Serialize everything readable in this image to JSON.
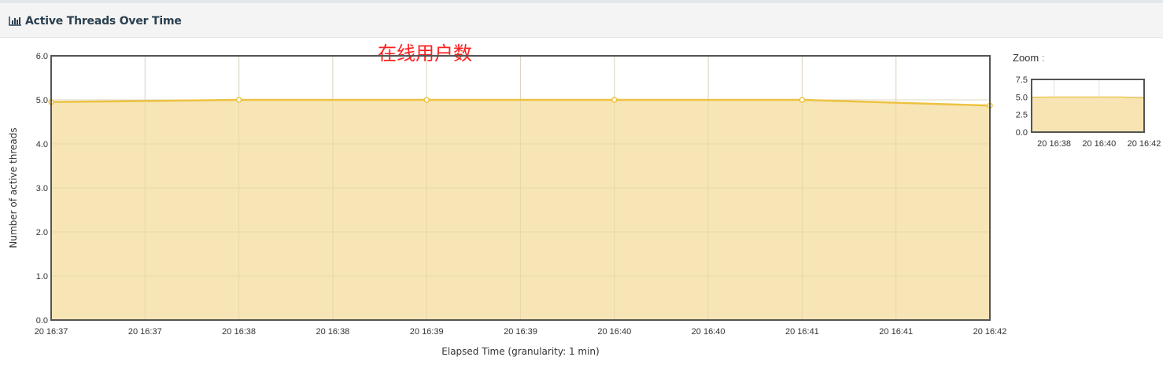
{
  "header": {
    "title": "Active Threads Over Time",
    "icon": "bar-chart-icon"
  },
  "annotation": "在线用户数",
  "zoom": {
    "label": "Zoom",
    "colon": ":",
    "ytick_labels": [
      "0.0",
      "2.5",
      "5.0",
      "7.5"
    ],
    "xtick_labels": [
      "20 16:38",
      "20 16:40",
      "20 16:42"
    ],
    "ylim": [
      0,
      7.5
    ]
  },
  "chart_data": {
    "type": "area",
    "xlabel": "Elapsed Time (granularity: 1 min)",
    "ylabel": "Number of active threads",
    "ylim": [
      0,
      6
    ],
    "ytick_labels": [
      "0.0",
      "1.0",
      "2.0",
      "3.0",
      "4.0",
      "5.0",
      "6.0"
    ],
    "xtick_labels": [
      "20 16:37",
      "20 16:37",
      "20 16:38",
      "20 16:38",
      "20 16:39",
      "20 16:39",
      "20 16:40",
      "20 16:40",
      "20 16:41",
      "20 16:41",
      "20 16:42"
    ],
    "x": [
      "20 16:37",
      "20 16:38",
      "20 16:39",
      "20 16:40",
      "20 16:41",
      "20 16:42"
    ],
    "values": [
      4.95,
      5.0,
      5.0,
      5.0,
      5.0,
      4.87
    ],
    "grid": true,
    "colors": {
      "line": "#edc240",
      "fill": "#f7e4b2"
    }
  }
}
